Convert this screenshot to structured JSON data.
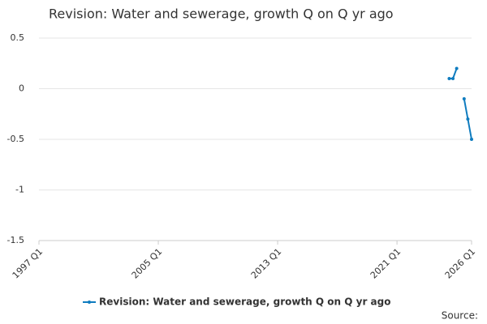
{
  "chart_data": {
    "type": "line",
    "title": "Revision: Water and sewerage, growth Q on Q yr ago",
    "source": "Source:",
    "categories": [
      "1997 Q1",
      null,
      null,
      null,
      null,
      null,
      null,
      null,
      null,
      null,
      null,
      null,
      null,
      null,
      null,
      null,
      null,
      null,
      null,
      null,
      null,
      null,
      null,
      null,
      null,
      null,
      null,
      null,
      null,
      null,
      null,
      null,
      "2005 Q1",
      null,
      null,
      null,
      null,
      null,
      null,
      null,
      null,
      null,
      null,
      null,
      null,
      null,
      null,
      null,
      null,
      null,
      null,
      null,
      null,
      null,
      null,
      null,
      null,
      null,
      null,
      null,
      null,
      null,
      null,
      null,
      "2013 Q1",
      null,
      null,
      null,
      null,
      null,
      null,
      null,
      null,
      null,
      null,
      null,
      null,
      null,
      null,
      null,
      null,
      null,
      null,
      null,
      null,
      null,
      null,
      null,
      null,
      null,
      null,
      null,
      null,
      null,
      null,
      null,
      "2021 Q1",
      null,
      null,
      null,
      null,
      null,
      null,
      null,
      null,
      null,
      null,
      null,
      null,
      null,
      null,
      null,
      null,
      null,
      null,
      null,
      "2026 Q1"
    ],
    "series": [
      {
        "name": "Revision: Water and sewerage, growth Q on Q yr ago",
        "color": "#0f7cbf",
        "values": [
          null,
          null,
          null,
          null,
          null,
          null,
          null,
          null,
          null,
          null,
          null,
          null,
          null,
          null,
          null,
          null,
          null,
          null,
          null,
          null,
          null,
          null,
          null,
          null,
          null,
          null,
          null,
          null,
          null,
          null,
          null,
          null,
          null,
          null,
          null,
          null,
          null,
          null,
          null,
          null,
          null,
          null,
          null,
          null,
          null,
          null,
          null,
          null,
          null,
          null,
          null,
          null,
          null,
          null,
          null,
          null,
          null,
          null,
          null,
          null,
          null,
          null,
          null,
          null,
          null,
          null,
          null,
          null,
          null,
          null,
          null,
          null,
          null,
          null,
          null,
          null,
          null,
          null,
          null,
          null,
          null,
          null,
          null,
          null,
          null,
          null,
          null,
          null,
          null,
          null,
          null,
          null,
          null,
          null,
          null,
          null,
          null,
          null,
          null,
          null,
          null,
          null,
          null,
          null,
          null,
          null,
          null,
          null,
          null,
          null,
          0.1,
          0.1,
          0.2,
          null,
          -0.1,
          -0.3,
          -0.5
        ]
      }
    ],
    "ylim": [
      -1.5,
      0.5
    ],
    "yticks": [
      0.5,
      0,
      -0.5,
      -1,
      -1.5
    ],
    "grid": true,
    "legend": "bottom"
  }
}
